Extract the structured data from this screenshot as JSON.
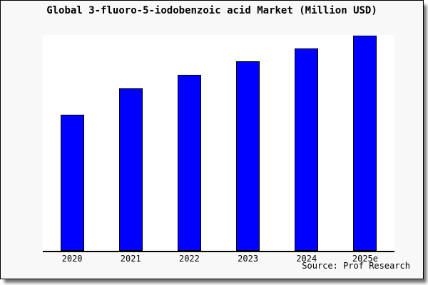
{
  "window": {
    "title": "Global 3-fluoro-5-iodobenzoic acid Market (Million USD)",
    "source_note": "Source: Prof Research"
  },
  "chart_data": {
    "type": "bar",
    "title": "Global 3-fluoro-5-iodobenzoic acid Market (Million USD)",
    "categories": [
      "2020",
      "2021",
      "2022",
      "2023",
      "2024",
      "2025e"
    ],
    "values": [
      63,
      75.3,
      81.7,
      88,
      94,
      100
    ],
    "values_note": "relative bar heights estimated from pixels; chart shows no y-axis scale (2025e = 100)",
    "xlabel": "",
    "ylabel": "",
    "ylim": [
      0,
      101
    ],
    "y_axis_visible": false,
    "gridlines": false,
    "legend_position": "none",
    "annotation": "Source: Prof Research",
    "colors": {
      "bar_fill": "#0000ff",
      "bar_border": "#000000",
      "panel_background": "#f8f8f8",
      "plot_background": "#ffffff",
      "axis_line": "#000000",
      "text": "#000000"
    }
  }
}
